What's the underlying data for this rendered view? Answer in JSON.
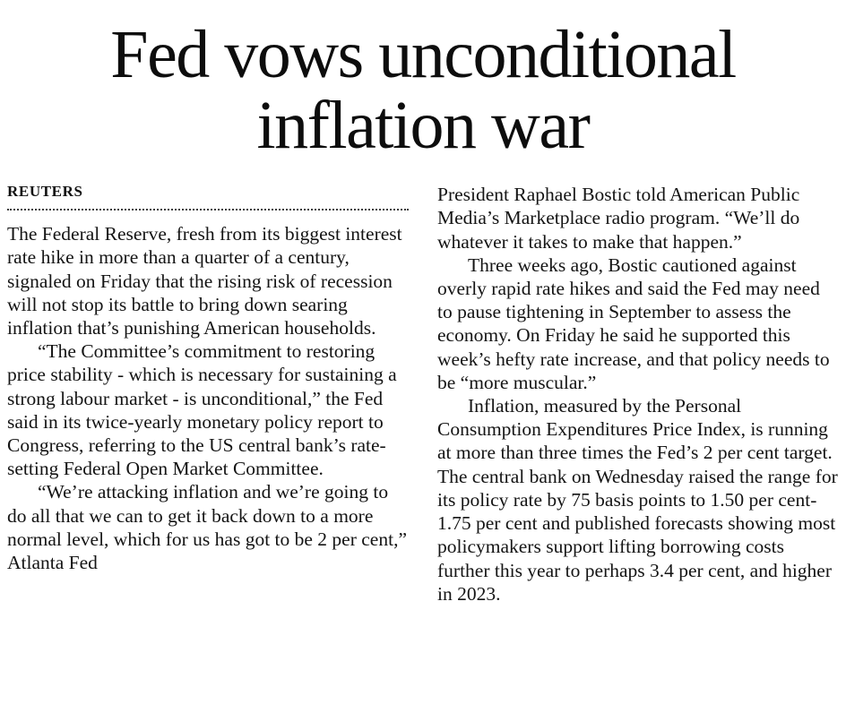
{
  "article": {
    "headline": "Fed vows unconditional inflation war",
    "byline": "REUTERS",
    "left_column": {
      "paragraphs": [
        "The Federal Reserve, fresh from its biggest interest rate hike in more than a quarter of a century, signaled on Friday that the rising risk of recession will not stop its battle to bring down searing inflation that’s punishing American households.",
        "“The Committee’s commitment to restoring price stability - which is necessary for sustaining a strong labour market - is unconditional,” the Fed said in its twice-yearly monetary policy report to Congress, referring to the US central bank’s rate-setting Federal Open Market Committee.",
        "“We’re attacking inflation and we’re going to do all that we can to get it back down to a more normal level, which for us has got to be 2 per cent,” Atlanta Fed"
      ]
    },
    "right_column": {
      "paragraphs": [
        "President Raphael Bostic told American Public Media’s Marketplace radio program. “We’ll do whatever it takes to make that happen.”",
        "Three weeks ago, Bostic cautioned against overly rapid rate hikes and said the Fed may need to pause tightening in September to assess the economy. On Friday he said he supported this week’s hefty rate increase, and that policy needs to be “more muscular.”",
        "Inflation, measured by the Personal Consumption Expenditures Price Index, is running at more than three times the Fed’s 2 per cent target. The central bank on Wednesday raised the range for its policy rate by 75 basis points to 1.50 per cent-1.75 per cent and published forecasts showing most policymakers support lifting borrowing costs further this year to perhaps 3.4 per cent, and higher in 2023."
      ]
    }
  }
}
